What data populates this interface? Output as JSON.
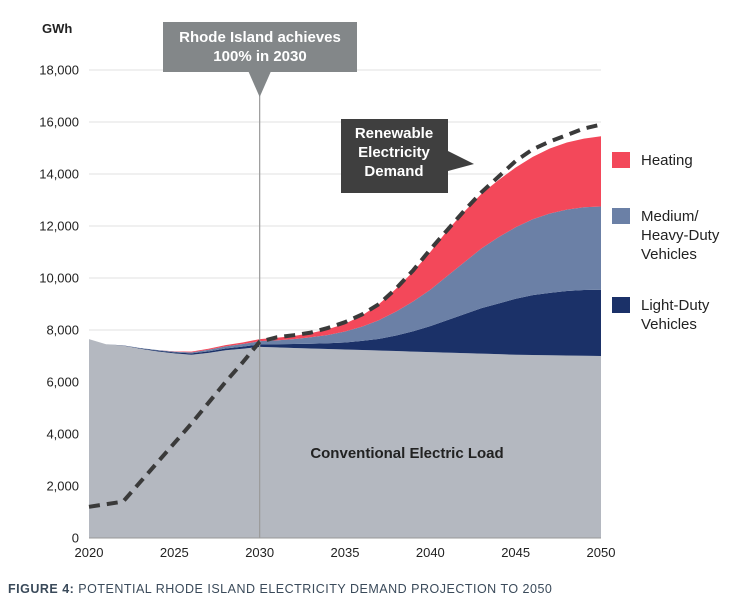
{
  "chart_data": {
    "type": "area",
    "unit_label": "GWh",
    "ylim": [
      0,
      18000
    ],
    "yticks": [
      0,
      2000,
      4000,
      6000,
      8000,
      10000,
      12000,
      14000,
      16000,
      18000
    ],
    "ytick_labels": [
      "0",
      "2,000",
      "4,000",
      "6,000",
      "8,000",
      "10,000",
      "12,000",
      "14,000",
      "16,000",
      "18,000"
    ],
    "xlim": [
      2020,
      2050
    ],
    "xticks": [
      2020,
      2025,
      2030,
      2035,
      2040,
      2045,
      2050
    ],
    "xtick_labels": [
      "2020",
      "2025",
      "2030",
      "2035",
      "2040",
      "2045",
      "2050"
    ],
    "x": [
      2020,
      2021,
      2022,
      2023,
      2024,
      2025,
      2026,
      2027,
      2028,
      2029,
      2030,
      2031,
      2032,
      2033,
      2034,
      2035,
      2036,
      2037,
      2038,
      2039,
      2040,
      2041,
      2042,
      2043,
      2044,
      2045,
      2046,
      2047,
      2048,
      2049,
      2050
    ],
    "series": [
      {
        "name": "Conventional Electric Load",
        "color": "#b4b8c0",
        "values": [
          7650,
          7450,
          7400,
          7280,
          7180,
          7100,
          7050,
          7120,
          7220,
          7280,
          7350,
          7330,
          7310,
          7290,
          7270,
          7250,
          7230,
          7210,
          7190,
          7170,
          7150,
          7130,
          7110,
          7090,
          7070,
          7050,
          7040,
          7030,
          7020,
          7010,
          7000
        ]
      },
      {
        "name": "Light-Duty Vehicles",
        "color": "#1b3168",
        "values": [
          0,
          0,
          10,
          20,
          30,
          40,
          50,
          60,
          70,
          80,
          100,
          120,
          150,
          180,
          220,
          270,
          350,
          450,
          600,
          780,
          1000,
          1250,
          1500,
          1750,
          1950,
          2150,
          2300,
          2400,
          2480,
          2530,
          2550
        ]
      },
      {
        "name": "Medium/ Heavy-Duty Vehicles",
        "color": "#6b80a6",
        "values": [
          0,
          0,
          0,
          10,
          20,
          30,
          40,
          60,
          80,
          100,
          120,
          150,
          190,
          250,
          320,
          420,
          550,
          720,
          920,
          1150,
          1400,
          1700,
          2000,
          2300,
          2550,
          2750,
          2920,
          3050,
          3130,
          3180,
          3200
        ]
      },
      {
        "name": "Heating",
        "color": "#f3485a",
        "values": [
          0,
          0,
          0,
          0,
          0,
          10,
          30,
          40,
          50,
          60,
          80,
          100,
          120,
          160,
          220,
          300,
          430,
          620,
          880,
          1150,
          1450,
          1750,
          1950,
          2100,
          2200,
          2300,
          2400,
          2500,
          2580,
          2640,
          2700
        ]
      },
      {
        "name": "Renewable Electricity",
        "style": "dashed",
        "color": "#3a3a3a",
        "values": [
          1200,
          1300,
          1400,
          2150,
          2900,
          3650,
          4400,
          5200,
          6000,
          6750,
          7550,
          7720,
          7800,
          7900,
          8080,
          8300,
          8600,
          9000,
          9600,
          10300,
          11100,
          11850,
          12600,
          13300,
          13900,
          14500,
          14950,
          15250,
          15500,
          15750,
          15900
        ]
      }
    ],
    "annotations": {
      "target_line_year": 2030,
      "target_box": [
        "Rhode Island achieves",
        "100% in 2030"
      ],
      "renewable_box": [
        "Renewable",
        "Electricity",
        "Demand"
      ],
      "area_label": "Conventional Electric Load"
    },
    "legend": [
      {
        "lines": [
          "Heating"
        ],
        "color": "#f3485a"
      },
      {
        "lines": [
          "Medium/",
          "Heavy-Duty",
          "Vehicles"
        ],
        "color": "#6b80a6"
      },
      {
        "lines": [
          "Light-Duty",
          "Vehicles"
        ],
        "color": "#1b3168"
      }
    ]
  },
  "caption": {
    "prefix": "FIGURE 4:",
    "text": " POTENTIAL RHODE ISLAND ELECTRICITY DEMAND PROJECTION TO 2050"
  }
}
